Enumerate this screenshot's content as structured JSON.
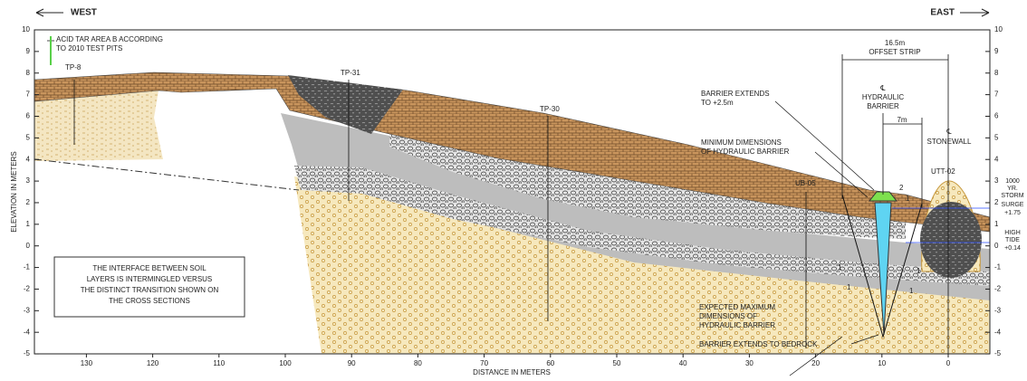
{
  "header": {
    "west": "WEST",
    "east": "EAST"
  },
  "axes": {
    "y_title": "ELEVATION IN METERS",
    "x_title": "DISTANCE IN METERS",
    "elevation_ticks": [
      10,
      9,
      8,
      7,
      6,
      5,
      4,
      3,
      2,
      1,
      0,
      -1,
      -2,
      -3,
      -4,
      -5
    ],
    "distance_ticks": [
      130,
      120,
      110,
      100,
      90,
      80,
      70,
      60,
      50,
      40,
      30,
      20,
      10,
      0
    ]
  },
  "annotations": {
    "acid_tar": [
      "ACID TAR AREA B ACCORDING",
      "TO 2010 TEST PITS"
    ],
    "test_pits": [
      "TP-8",
      "TP-31",
      "TP-30",
      "UB-05",
      "UTT-02"
    ],
    "offset_strip": [
      "16.5m",
      "OFFSET STRIP"
    ],
    "barrier_extends_top": [
      "BARRIER EXTENDS",
      "TO +2.5m"
    ],
    "barrier_centerline": [
      "℄",
      "HYDRAULIC",
      "BARRIER"
    ],
    "spacing": "7m",
    "stonewall_centerline": [
      "℄",
      "STONEWALL"
    ],
    "min_dimensions": [
      "MINIMUM DIMENSIONS",
      "OF HYDRAULIC BARRIER"
    ],
    "storm_surge": [
      "1000",
      "YR.",
      "STORM",
      "SURGE",
      "+1.75"
    ],
    "high_tide": [
      "HIGH",
      "TIDE",
      "+0.14"
    ],
    "interface_note": [
      "THE INTERFACE BETWEEN SOIL",
      "LAYERS IS INTERMINGLED VERSUS",
      "THE DISTINCT TRANSITION SHOWN ON",
      "THE CROSS SECTIONS"
    ],
    "max_dimensions": [
      "EXPECTED MAXIMUM",
      "DIMENSIONS OF",
      "HYDRAULIC BARRIER"
    ],
    "bedrock": "BARRIER EXTENDS TO BEDROCK",
    "slopes": [
      "2",
      "1",
      "1",
      "1",
      "1",
      "1"
    ]
  }
}
